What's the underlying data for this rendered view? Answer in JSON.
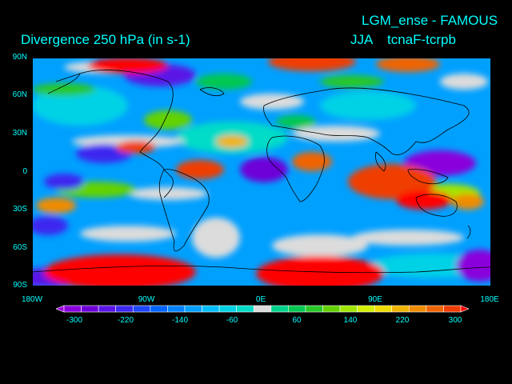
{
  "header": {
    "model_title": "LGM_ense - FAMOUS",
    "variable_title": "Divergence   250 hPa  (in s-1)",
    "season": "JJA",
    "experiment": "tcnaF-tcrpb"
  },
  "axes": {
    "lat_labels": [
      "90N",
      "60N",
      "30N",
      "0",
      "30S",
      "60S",
      "90S"
    ],
    "lon_labels": [
      "180W",
      "90W",
      "0E",
      "90E",
      "180E"
    ]
  },
  "colorbar": {
    "tick_labels": [
      "-300",
      "-220",
      "-140",
      "-60",
      "60",
      "140",
      "220",
      "300"
    ],
    "colors": [
      "#a000e0",
      "#8a00dc",
      "#6e00d8",
      "#5a14e6",
      "#3c28f0",
      "#1e46fa",
      "#0064ff",
      "#0082ff",
      "#00a0ff",
      "#00beff",
      "#00d2e6",
      "#00dcc8",
      "#dcdcdc",
      "#00d28c",
      "#00c850",
      "#28c828",
      "#64d200",
      "#a0e600",
      "#d2f000",
      "#f0dc00",
      "#f0b400",
      "#f08c00",
      "#f06400",
      "#f03c00",
      "#ff0000"
    ]
  }
}
